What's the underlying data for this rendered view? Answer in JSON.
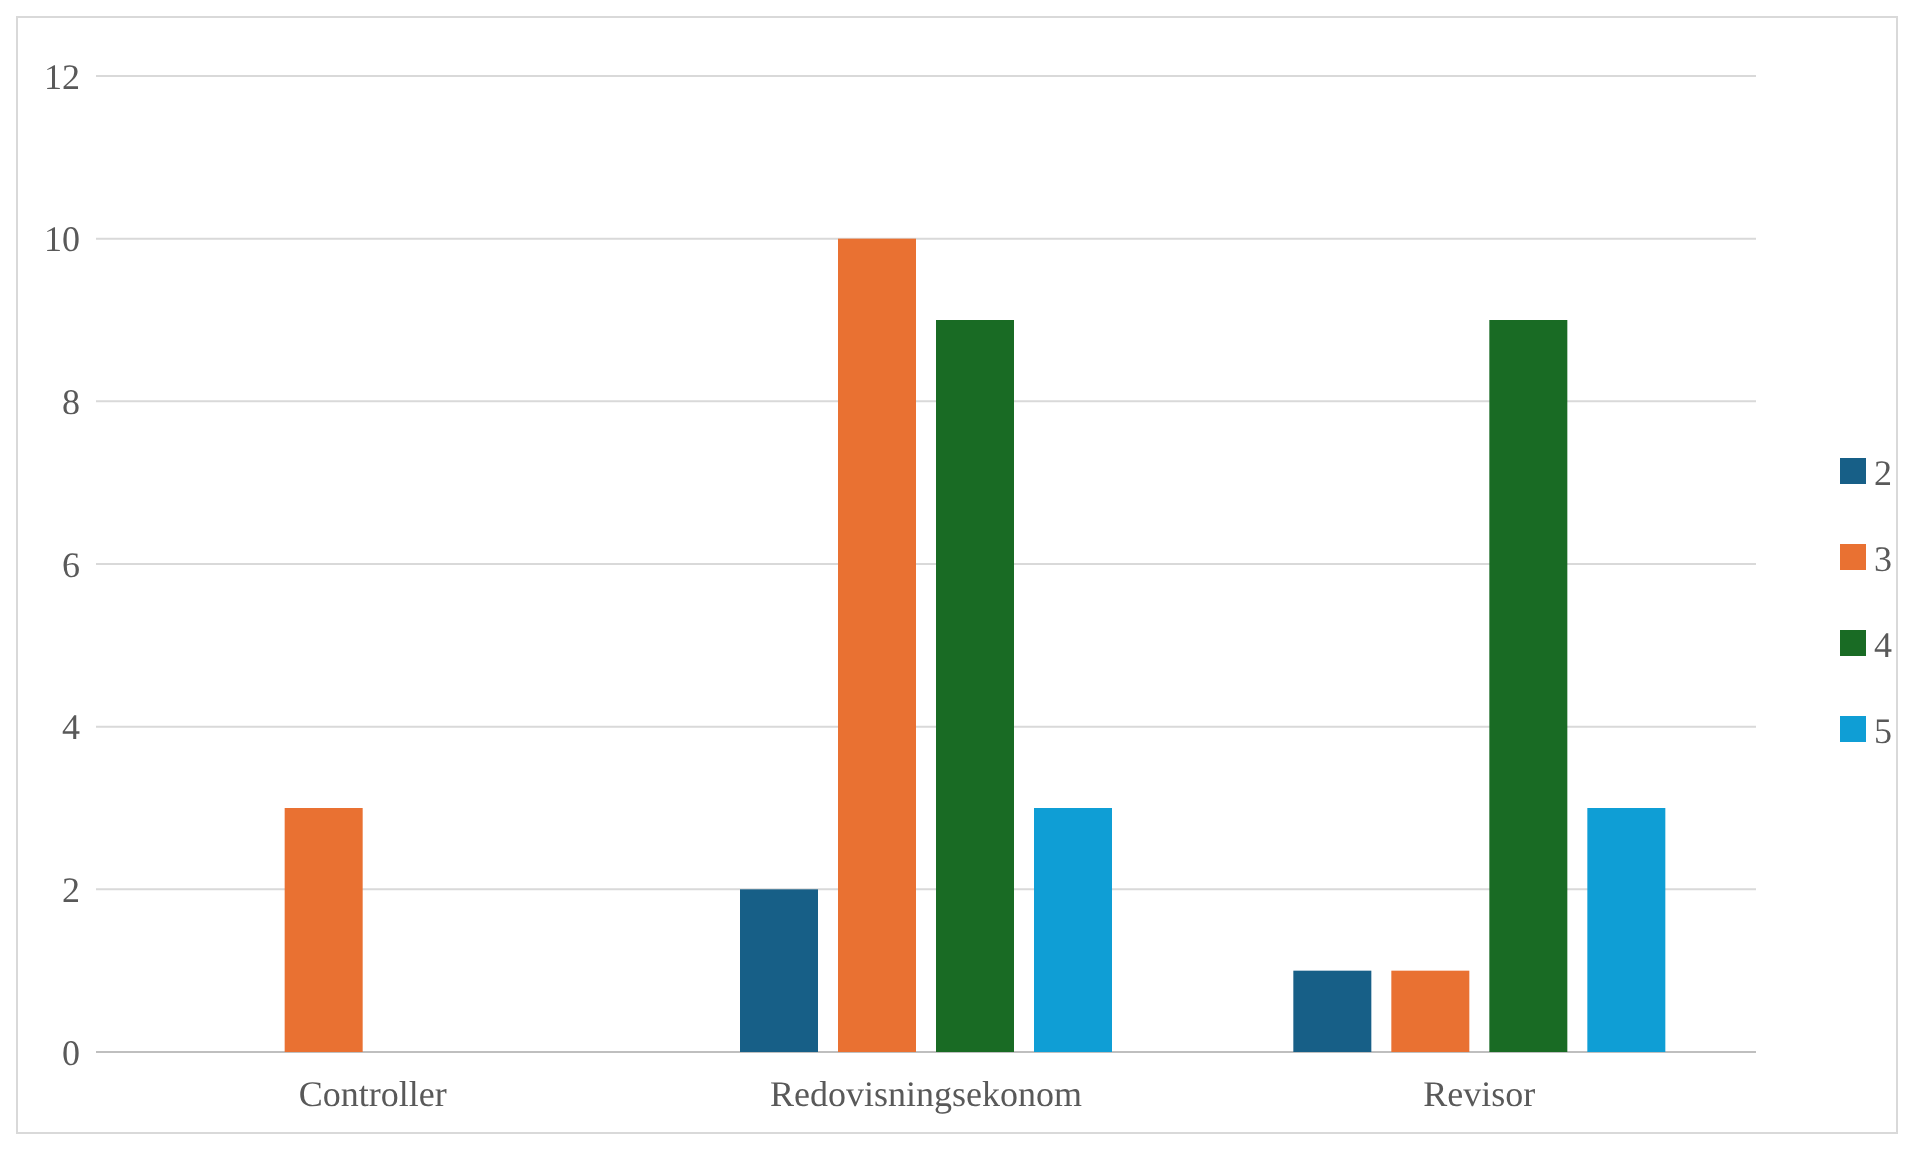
{
  "chart_data": {
    "type": "bar",
    "categories": [
      "Controller",
      "Redovisningsekonom",
      "Revisor"
    ],
    "series": [
      {
        "name": "2",
        "color": "#175f87",
        "values": [
          0,
          2,
          1
        ]
      },
      {
        "name": "3",
        "color": "#e97132",
        "values": [
          3,
          10,
          1
        ]
      },
      {
        "name": "4",
        "color": "#196b24",
        "values": [
          0,
          9,
          9
        ]
      },
      {
        "name": "5",
        "color": "#0f9ed5",
        "values": [
          0,
          3,
          3
        ]
      }
    ],
    "ylim": [
      0,
      12
    ],
    "yticks": [
      0,
      2,
      4,
      6,
      8,
      10,
      12
    ],
    "grid": "y",
    "legend": "right"
  }
}
